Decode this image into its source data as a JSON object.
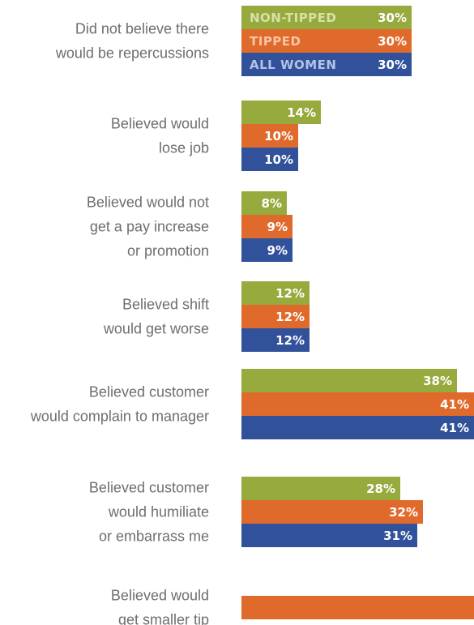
{
  "chart_data": {
    "type": "bar",
    "orientation": "horizontal",
    "title": "",
    "xlabel": "",
    "ylabel": "",
    "xlim": [
      0,
      41
    ],
    "grid": false,
    "legend": "inline-top",
    "categories": [
      [
        "Did not believe there",
        "would be repercussions"
      ],
      [
        "Believed would",
        "lose job"
      ],
      [
        "Believed would not",
        "get a pay increase",
        "or promotion"
      ],
      [
        "Believed shift",
        "would get worse"
      ],
      [
        "Believed customer",
        "would complain to manager"
      ],
      [
        "Believed customer",
        "would humiliate",
        "or embarrass me"
      ],
      [
        "Believed would",
        "get smaller tip"
      ]
    ],
    "series": [
      {
        "name": "NON-TIPPED",
        "color": "#97aa3d",
        "text_color": "#d8e0a8",
        "values": [
          30,
          14,
          8,
          12,
          38,
          28,
          null
        ]
      },
      {
        "name": "TIPPED",
        "color": "#e06a2c",
        "text_color": "#f6c7a4",
        "values": [
          30,
          10,
          9,
          12,
          41,
          32,
          41
        ]
      },
      {
        "name": "ALL WOMEN",
        "color": "#31529b",
        "text_color": "#b3c2e4",
        "values": [
          30,
          10,
          9,
          12,
          41,
          31,
          null
        ]
      }
    ],
    "value_labels": [
      [
        "30%",
        "14%",
        "8%",
        "12%",
        "38%",
        "28%",
        ""
      ],
      [
        "30%",
        "10%",
        "9%",
        "12%",
        "41%",
        "32%",
        ""
      ],
      [
        "30%",
        "10%",
        "9%",
        "12%",
        "41%",
        "31%",
        ""
      ]
    ]
  }
}
